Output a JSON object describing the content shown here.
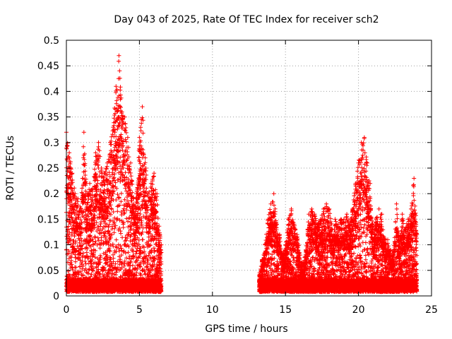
{
  "chart_data": {
    "type": "scatter",
    "title": "Day 043 of 2025, Rate Of TEC Index for receiver sch2",
    "xlabel": "GPS time / hours",
    "ylabel": "ROTI / TECUs",
    "xlim": [
      0,
      25
    ],
    "ylim": [
      0,
      0.5
    ],
    "x_ticks": [
      0,
      5,
      10,
      15,
      20,
      25
    ],
    "y_ticks": [
      0,
      0.05,
      0.1,
      0.15,
      0.2,
      0.25,
      0.3,
      0.35,
      0.4,
      0.45,
      0.5
    ],
    "grid": true,
    "marker": "+",
    "marker_color": "#ff0000",
    "series": [
      {
        "segments": [
          {
            "x_start": 0.0,
            "x_end": 6.5,
            "envelope": [
              [
                0.0,
                0.32
              ],
              [
                0.2,
                0.28
              ],
              [
                0.4,
                0.24
              ],
              [
                0.6,
                0.2
              ],
              [
                0.8,
                0.19
              ],
              [
                1.0,
                0.17
              ],
              [
                1.2,
                0.32
              ],
              [
                1.4,
                0.2
              ],
              [
                1.6,
                0.22
              ],
              [
                1.8,
                0.21
              ],
              [
                2.0,
                0.28
              ],
              [
                2.2,
                0.3
              ],
              [
                2.4,
                0.25
              ],
              [
                2.6,
                0.24
              ],
              [
                2.8,
                0.26
              ],
              [
                3.0,
                0.3
              ],
              [
                3.2,
                0.33
              ],
              [
                3.4,
                0.41
              ],
              [
                3.6,
                0.47
              ],
              [
                3.8,
                0.36
              ],
              [
                4.0,
                0.35
              ],
              [
                4.2,
                0.31
              ],
              [
                4.4,
                0.26
              ],
              [
                4.6,
                0.19
              ],
              [
                4.8,
                0.2
              ],
              [
                5.0,
                0.31
              ],
              [
                5.2,
                0.37
              ],
              [
                5.4,
                0.27
              ],
              [
                5.6,
                0.2
              ],
              [
                5.8,
                0.22
              ],
              [
                6.0,
                0.24
              ],
              [
                6.2,
                0.2
              ],
              [
                6.4,
                0.12
              ],
              [
                6.5,
                0.1
              ]
            ]
          },
          {
            "x_start": 13.2,
            "x_end": 24.0,
            "envelope": [
              [
                13.2,
                0.04
              ],
              [
                13.4,
                0.07
              ],
              [
                13.6,
                0.1
              ],
              [
                13.8,
                0.15
              ],
              [
                14.0,
                0.18
              ],
              [
                14.2,
                0.2
              ],
              [
                14.4,
                0.14
              ],
              [
                14.6,
                0.12
              ],
              [
                14.8,
                0.08
              ],
              [
                15.0,
                0.1
              ],
              [
                15.2,
                0.15
              ],
              [
                15.4,
                0.17
              ],
              [
                15.6,
                0.14
              ],
              [
                15.8,
                0.12
              ],
              [
                16.0,
                0.08
              ],
              [
                16.2,
                0.06
              ],
              [
                16.4,
                0.09
              ],
              [
                16.6,
                0.16
              ],
              [
                16.8,
                0.17
              ],
              [
                17.0,
                0.16
              ],
              [
                17.2,
                0.14
              ],
              [
                17.4,
                0.15
              ],
              [
                17.6,
                0.17
              ],
              [
                17.8,
                0.18
              ],
              [
                18.0,
                0.17
              ],
              [
                18.2,
                0.13
              ],
              [
                18.4,
                0.15
              ],
              [
                18.6,
                0.14
              ],
              [
                18.8,
                0.15
              ],
              [
                19.0,
                0.15
              ],
              [
                19.2,
                0.16
              ],
              [
                19.4,
                0.14
              ],
              [
                19.6,
                0.17
              ],
              [
                19.8,
                0.22
              ],
              [
                20.0,
                0.26
              ],
              [
                20.2,
                0.3
              ],
              [
                20.4,
                0.31
              ],
              [
                20.6,
                0.26
              ],
              [
                20.8,
                0.22
              ],
              [
                21.0,
                0.13
              ],
              [
                21.2,
                0.15
              ],
              [
                21.4,
                0.17
              ],
              [
                21.6,
                0.16
              ],
              [
                21.8,
                0.11
              ],
              [
                22.0,
                0.11
              ],
              [
                22.2,
                0.09
              ],
              [
                22.4,
                0.08
              ],
              [
                22.6,
                0.18
              ],
              [
                22.8,
                0.1
              ],
              [
                23.0,
                0.16
              ],
              [
                23.2,
                0.13
              ],
              [
                23.4,
                0.15
              ],
              [
                23.6,
                0.17
              ],
              [
                23.8,
                0.23
              ],
              [
                24.0,
                0.12
              ]
            ]
          }
        ]
      }
    ]
  }
}
